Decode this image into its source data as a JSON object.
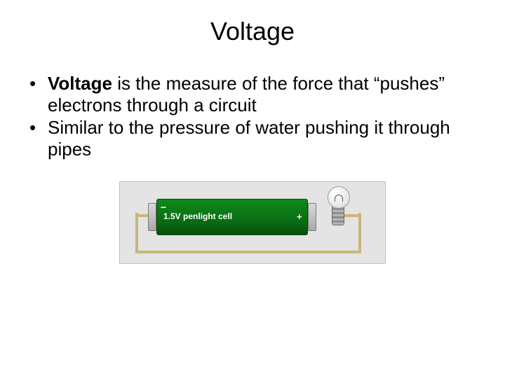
{
  "slide": {
    "title": "Voltage",
    "bullets": [
      {
        "bold_lead": "Voltage",
        "rest": " is the measure of the force that “pushes” electrons through a circuit"
      },
      {
        "bold_lead": "",
        "rest": "Similar to the pressure of water pushing it through pipes"
      }
    ]
  },
  "figure": {
    "type": "infographic",
    "background_color": "#e4e4e4",
    "border_color": "#bfbfbf",
    "battery": {
      "label": "1.5V penlight cell",
      "minus_symbol": "−",
      "plus_symbol": "+",
      "fill_color": "#0a6d13",
      "text_color": "#ffffff",
      "label_fontsize": 12
    },
    "wire_color": "#c9b77a",
    "terminal_color": "#bcbcbc",
    "bulb": {
      "glass_color": "#e9e9e9",
      "base_color": "#9a9a9a"
    }
  },
  "colors": {
    "page_bg": "#ffffff",
    "text": "#000000"
  },
  "typography": {
    "title_fontsize": 36,
    "body_fontsize": 26,
    "font_family": "Arial"
  }
}
